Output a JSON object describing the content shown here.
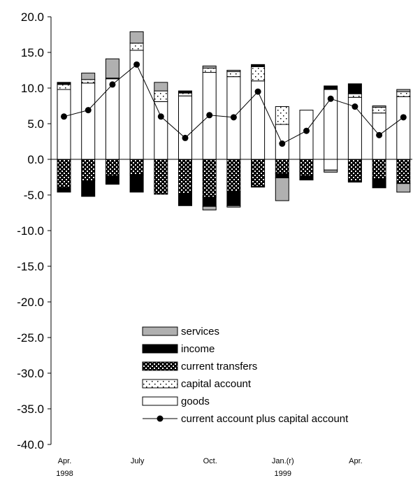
{
  "chart_data": {
    "type": "bar",
    "subtype": "stacked-bar-with-line",
    "ylim": [
      -40,
      20
    ],
    "y_ticks": [
      "20.0",
      "15.0",
      "10.0",
      "5.0",
      "0.0",
      "-5.0",
      "-10.0",
      "-15.0",
      "-20.0",
      "-25.0",
      "-30.0",
      "-35.0",
      "-40.0"
    ],
    "x_labels": [
      {
        "index": 0,
        "line1": "Apr.",
        "line2": "1998"
      },
      {
        "index": 3,
        "line1": "July",
        "line2": ""
      },
      {
        "index": 6,
        "line1": "Oct.",
        "line2": ""
      },
      {
        "index": 9,
        "line1": "Jan.(r)",
        "line2": "1999"
      },
      {
        "index": 12,
        "line1": "Apr.",
        "line2": ""
      }
    ],
    "legend": {
      "services": "services",
      "income": "income",
      "transfers": "current transfers",
      "capital": "capital account",
      "goods": "goods",
      "line": "current account plus capital account"
    },
    "colors": {
      "services": "#b0b0b0",
      "income": "#000000",
      "goods": "#ffffff",
      "line": "#000000"
    },
    "series": [
      {
        "key": "goods",
        "pos": [
          9.8,
          10.7,
          11.3,
          15.3,
          8.1,
          8.9,
          12.2,
          11.6,
          11.0,
          4.9,
          6.9,
          9.8,
          8.7,
          6.5,
          8.8
        ],
        "neg": [
          0,
          0,
          0,
          0,
          0,
          0,
          0,
          0,
          0,
          0,
          0,
          -1.5,
          0,
          0,
          0
        ]
      },
      {
        "key": "capital",
        "pos": [
          0.7,
          0.5,
          0,
          1.0,
          1.5,
          0.4,
          0.6,
          0.7,
          2.0,
          2.5,
          0,
          0,
          0.5,
          0.8,
          0.7
        ],
        "neg": [
          0,
          0,
          0,
          0,
          0,
          0,
          0,
          0,
          0,
          0,
          0,
          0,
          0,
          0,
          0
        ]
      },
      {
        "key": "transfers",
        "pos": [
          0,
          0,
          0,
          0,
          0,
          0,
          0,
          0,
          0,
          0,
          0,
          0,
          0,
          0,
          0
        ],
        "neg": [
          -4.0,
          -3.0,
          -2.3,
          -2.2,
          -4.9,
          -4.8,
          -5.3,
          -4.5,
          -3.8,
          -2.0,
          -2.3,
          0,
          -3.0,
          -2.7,
          -3.4
        ]
      },
      {
        "key": "income",
        "pos": [
          0.3,
          0,
          0.1,
          0,
          0,
          0.3,
          0,
          0,
          0.3,
          0,
          0,
          0.5,
          1.4,
          0,
          0
        ],
        "neg": [
          -0.6,
          -2.2,
          -1.2,
          -2.4,
          0,
          -1.7,
          -1.3,
          -2.0,
          -0.1,
          -0.6,
          -0.6,
          0,
          -0.2,
          -1.3,
          0
        ]
      },
      {
        "key": "services",
        "pos": [
          0,
          0.9,
          2.7,
          1.6,
          1.2,
          0,
          0.3,
          0.2,
          0,
          0,
          0,
          0,
          0,
          0.2,
          0.3
        ],
        "neg": [
          0,
          0,
          0,
          0,
          0,
          0,
          -0.5,
          -0.2,
          0,
          -3.2,
          0,
          -0.3,
          0,
          0,
          -1.2
        ]
      }
    ],
    "line": [
      6.0,
      6.9,
      10.5,
      13.3,
      6.0,
      3.0,
      6.2,
      5.9,
      9.5,
      2.2,
      4.0,
      8.5,
      7.4,
      3.4,
      5.9
    ]
  }
}
